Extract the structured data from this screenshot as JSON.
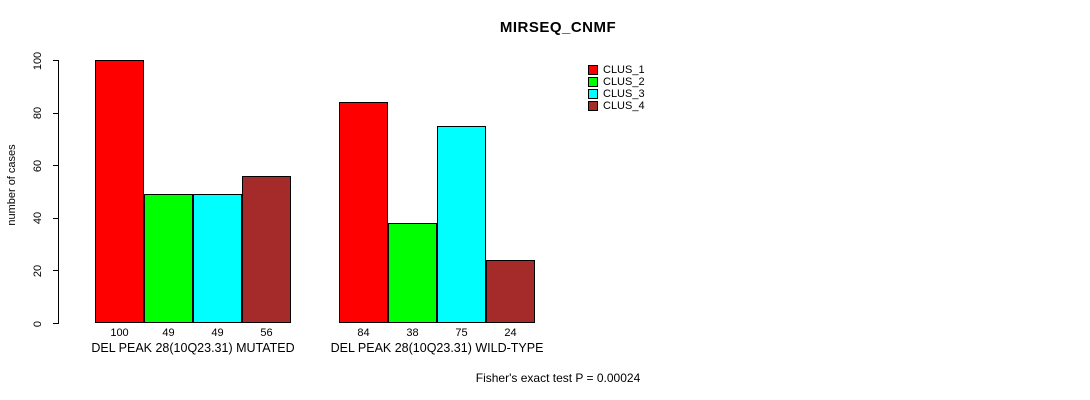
{
  "chart_data": {
    "type": "bar",
    "title": "MIRSEQ_CNMF",
    "ylabel": "number of cases",
    "xlabel": "",
    "ylim": [
      0,
      100
    ],
    "yticks": [
      0,
      20,
      40,
      60,
      80,
      100
    ],
    "grid": false,
    "legend_position": "top-right",
    "categories": [
      "DEL PEAK 28(10Q23.31) MUTATED",
      "DEL PEAK 28(10Q23.31) WILD-TYPE"
    ],
    "series": [
      {
        "name": "CLUS_1",
        "color": "#FF0000",
        "values": [
          100,
          84
        ]
      },
      {
        "name": "CLUS_2",
        "color": "#00FF00",
        "values": [
          49,
          38
        ]
      },
      {
        "name": "CLUS_3",
        "color": "#00FFFF",
        "values": [
          49,
          75
        ]
      },
      {
        "name": "CLUS_4",
        "color": "#A52A2A",
        "values": [
          56,
          24
        ]
      }
    ],
    "bar_value_labels": [
      [
        "100",
        "49",
        "49",
        "56"
      ],
      [
        "84",
        "38",
        "75",
        "24"
      ]
    ],
    "annotation": "Fisher's exact test P = 0.00024"
  },
  "colors": {
    "axis": "#000000",
    "background": "#FFFFFF"
  }
}
